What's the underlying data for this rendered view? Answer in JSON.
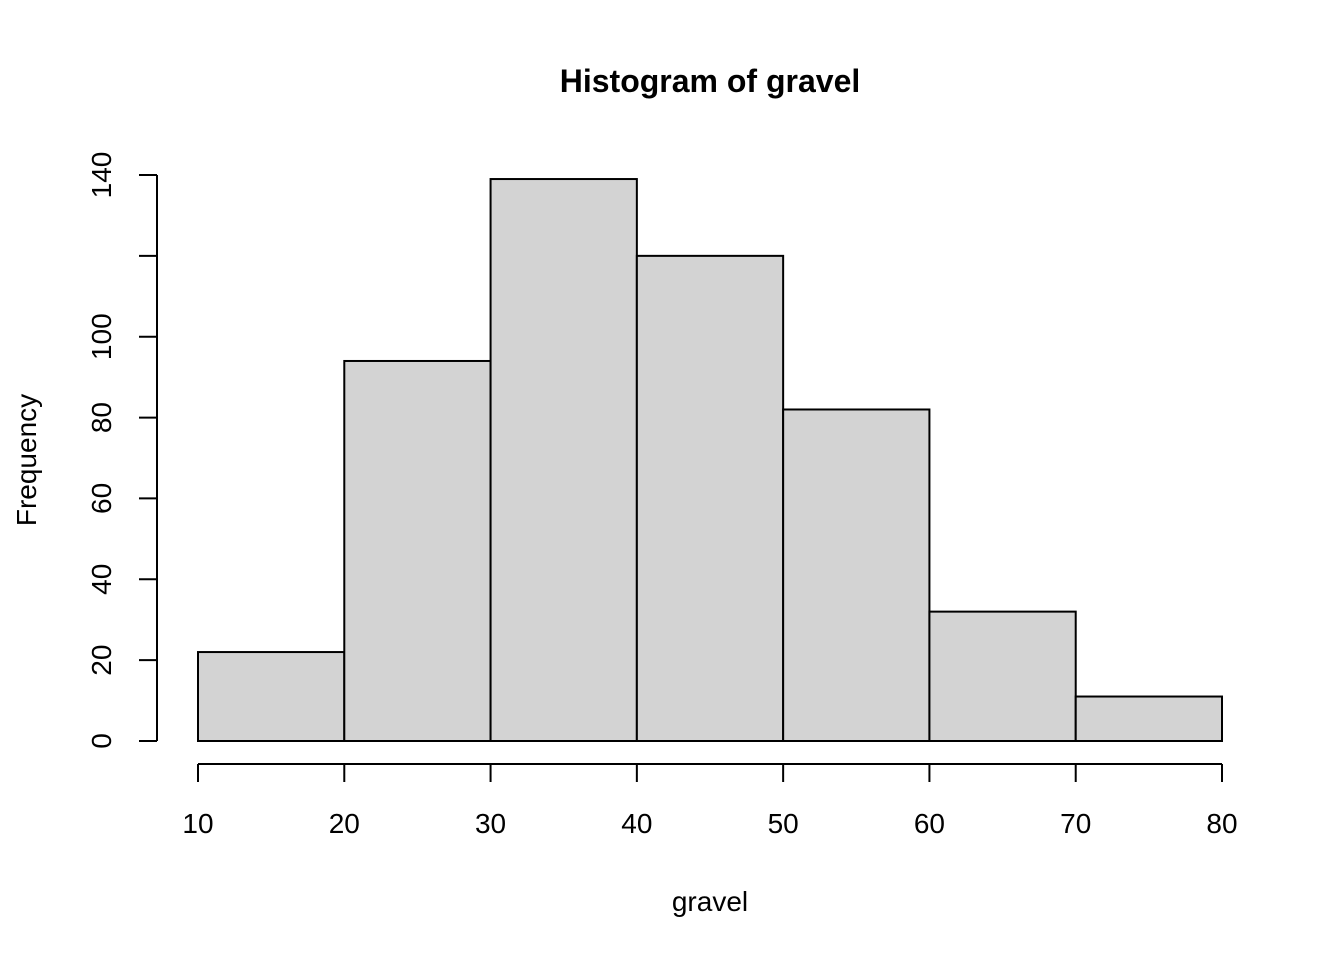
{
  "chart_data": {
    "type": "bar",
    "title": "Histogram of gravel",
    "xlabel": "gravel",
    "ylabel": "Frequency",
    "bins": [
      {
        "from": 10,
        "to": 20,
        "count": 22
      },
      {
        "from": 20,
        "to": 30,
        "count": 94
      },
      {
        "from": 30,
        "to": 40,
        "count": 139
      },
      {
        "from": 40,
        "to": 50,
        "count": 120
      },
      {
        "from": 50,
        "to": 60,
        "count": 82
      },
      {
        "from": 60,
        "to": 70,
        "count": 32
      },
      {
        "from": 70,
        "to": 80,
        "count": 11
      }
    ],
    "xlim": [
      10,
      80
    ],
    "ylim": [
      0,
      140
    ],
    "x_ticks": [
      "10",
      "20",
      "30",
      "40",
      "50",
      "60",
      "70",
      "80"
    ],
    "y_ticks": [
      0,
      20,
      40,
      60,
      80,
      100,
      120,
      140
    ],
    "y_tick_labels": [
      "0",
      "20",
      "40",
      "60",
      "80",
      "100",
      "",
      "140"
    ],
    "bar_color": "#d3d3d3",
    "grid": false,
    "legend": "none"
  }
}
